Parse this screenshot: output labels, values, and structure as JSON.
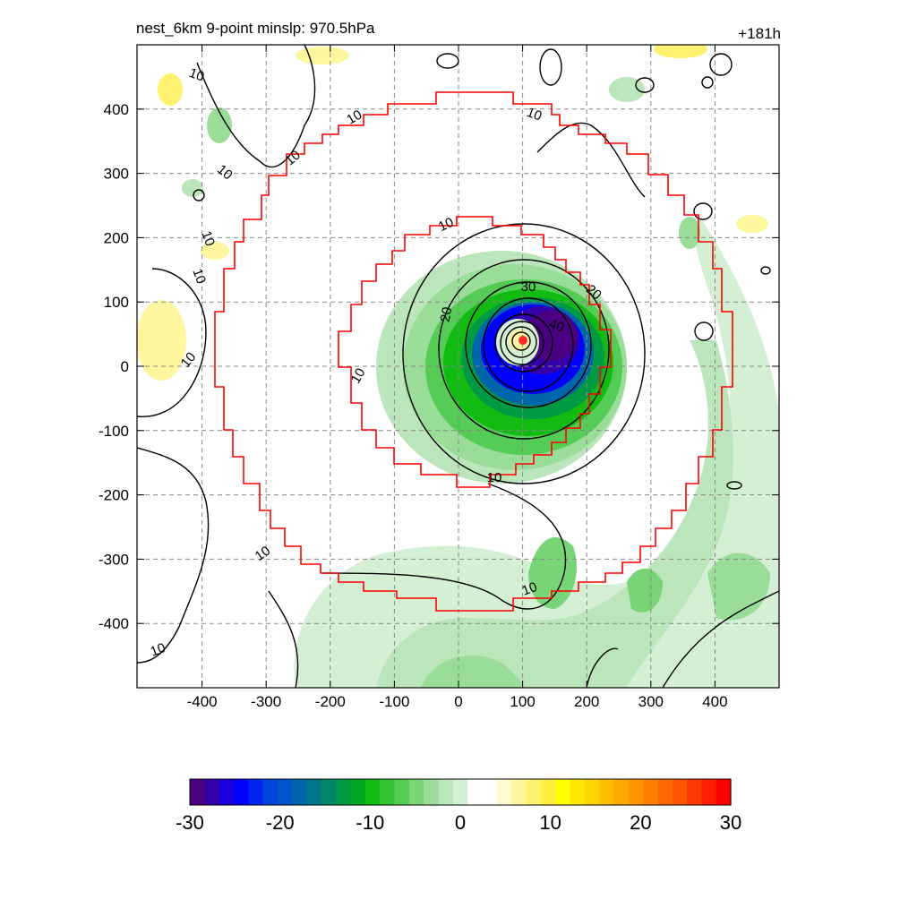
{
  "header": {
    "title": "nest_6km  9-point minslp: 970.5hPa",
    "forecast_hour": "+181h"
  },
  "map": {
    "x_ticks": [
      "-400",
      "-300",
      "-200",
      "-100",
      "0",
      "100",
      "200",
      "300",
      "400"
    ],
    "y_ticks": [
      "400",
      "300",
      "200",
      "100",
      "0",
      "-100",
      "-200",
      "-300",
      "-400"
    ],
    "storm_center_km": [
      100,
      40
    ],
    "contour_labels": [
      "10",
      "10",
      "10",
      "10",
      "10",
      "10",
      "10",
      "10",
      "10",
      "10",
      "10",
      "10",
      "10",
      "10",
      "20",
      "20",
      "30",
      "40"
    ]
  },
  "colorbar": {
    "tick_labels": [
      "-30",
      "-20",
      "-10",
      "0",
      "10",
      "20",
      "30"
    ],
    "range": [
      -30,
      30
    ],
    "colors": [
      "#4b0082",
      "#3300aa",
      "#1a00dd",
      "#0000ff",
      "#0022ee",
      "#0044dd",
      "#0055cc",
      "#0066aa",
      "#007788",
      "#008866",
      "#009944",
      "#00aa22",
      "#11bb11",
      "#33c433",
      "#55cc55",
      "#77d477",
      "#99dd99",
      "#bbe6bb",
      "#d5efd5",
      "#ffffff",
      "#ffffff",
      "#fffbd0",
      "#fff7a0",
      "#fff270",
      "#ffee40",
      "#ffff00",
      "#ffe800",
      "#ffd400",
      "#ffbf00",
      "#ffaa00",
      "#ff9500",
      "#ff8000",
      "#ff6a00",
      "#ff5500",
      "#ff3a00",
      "#ff2000",
      "#ff0000"
    ]
  }
}
